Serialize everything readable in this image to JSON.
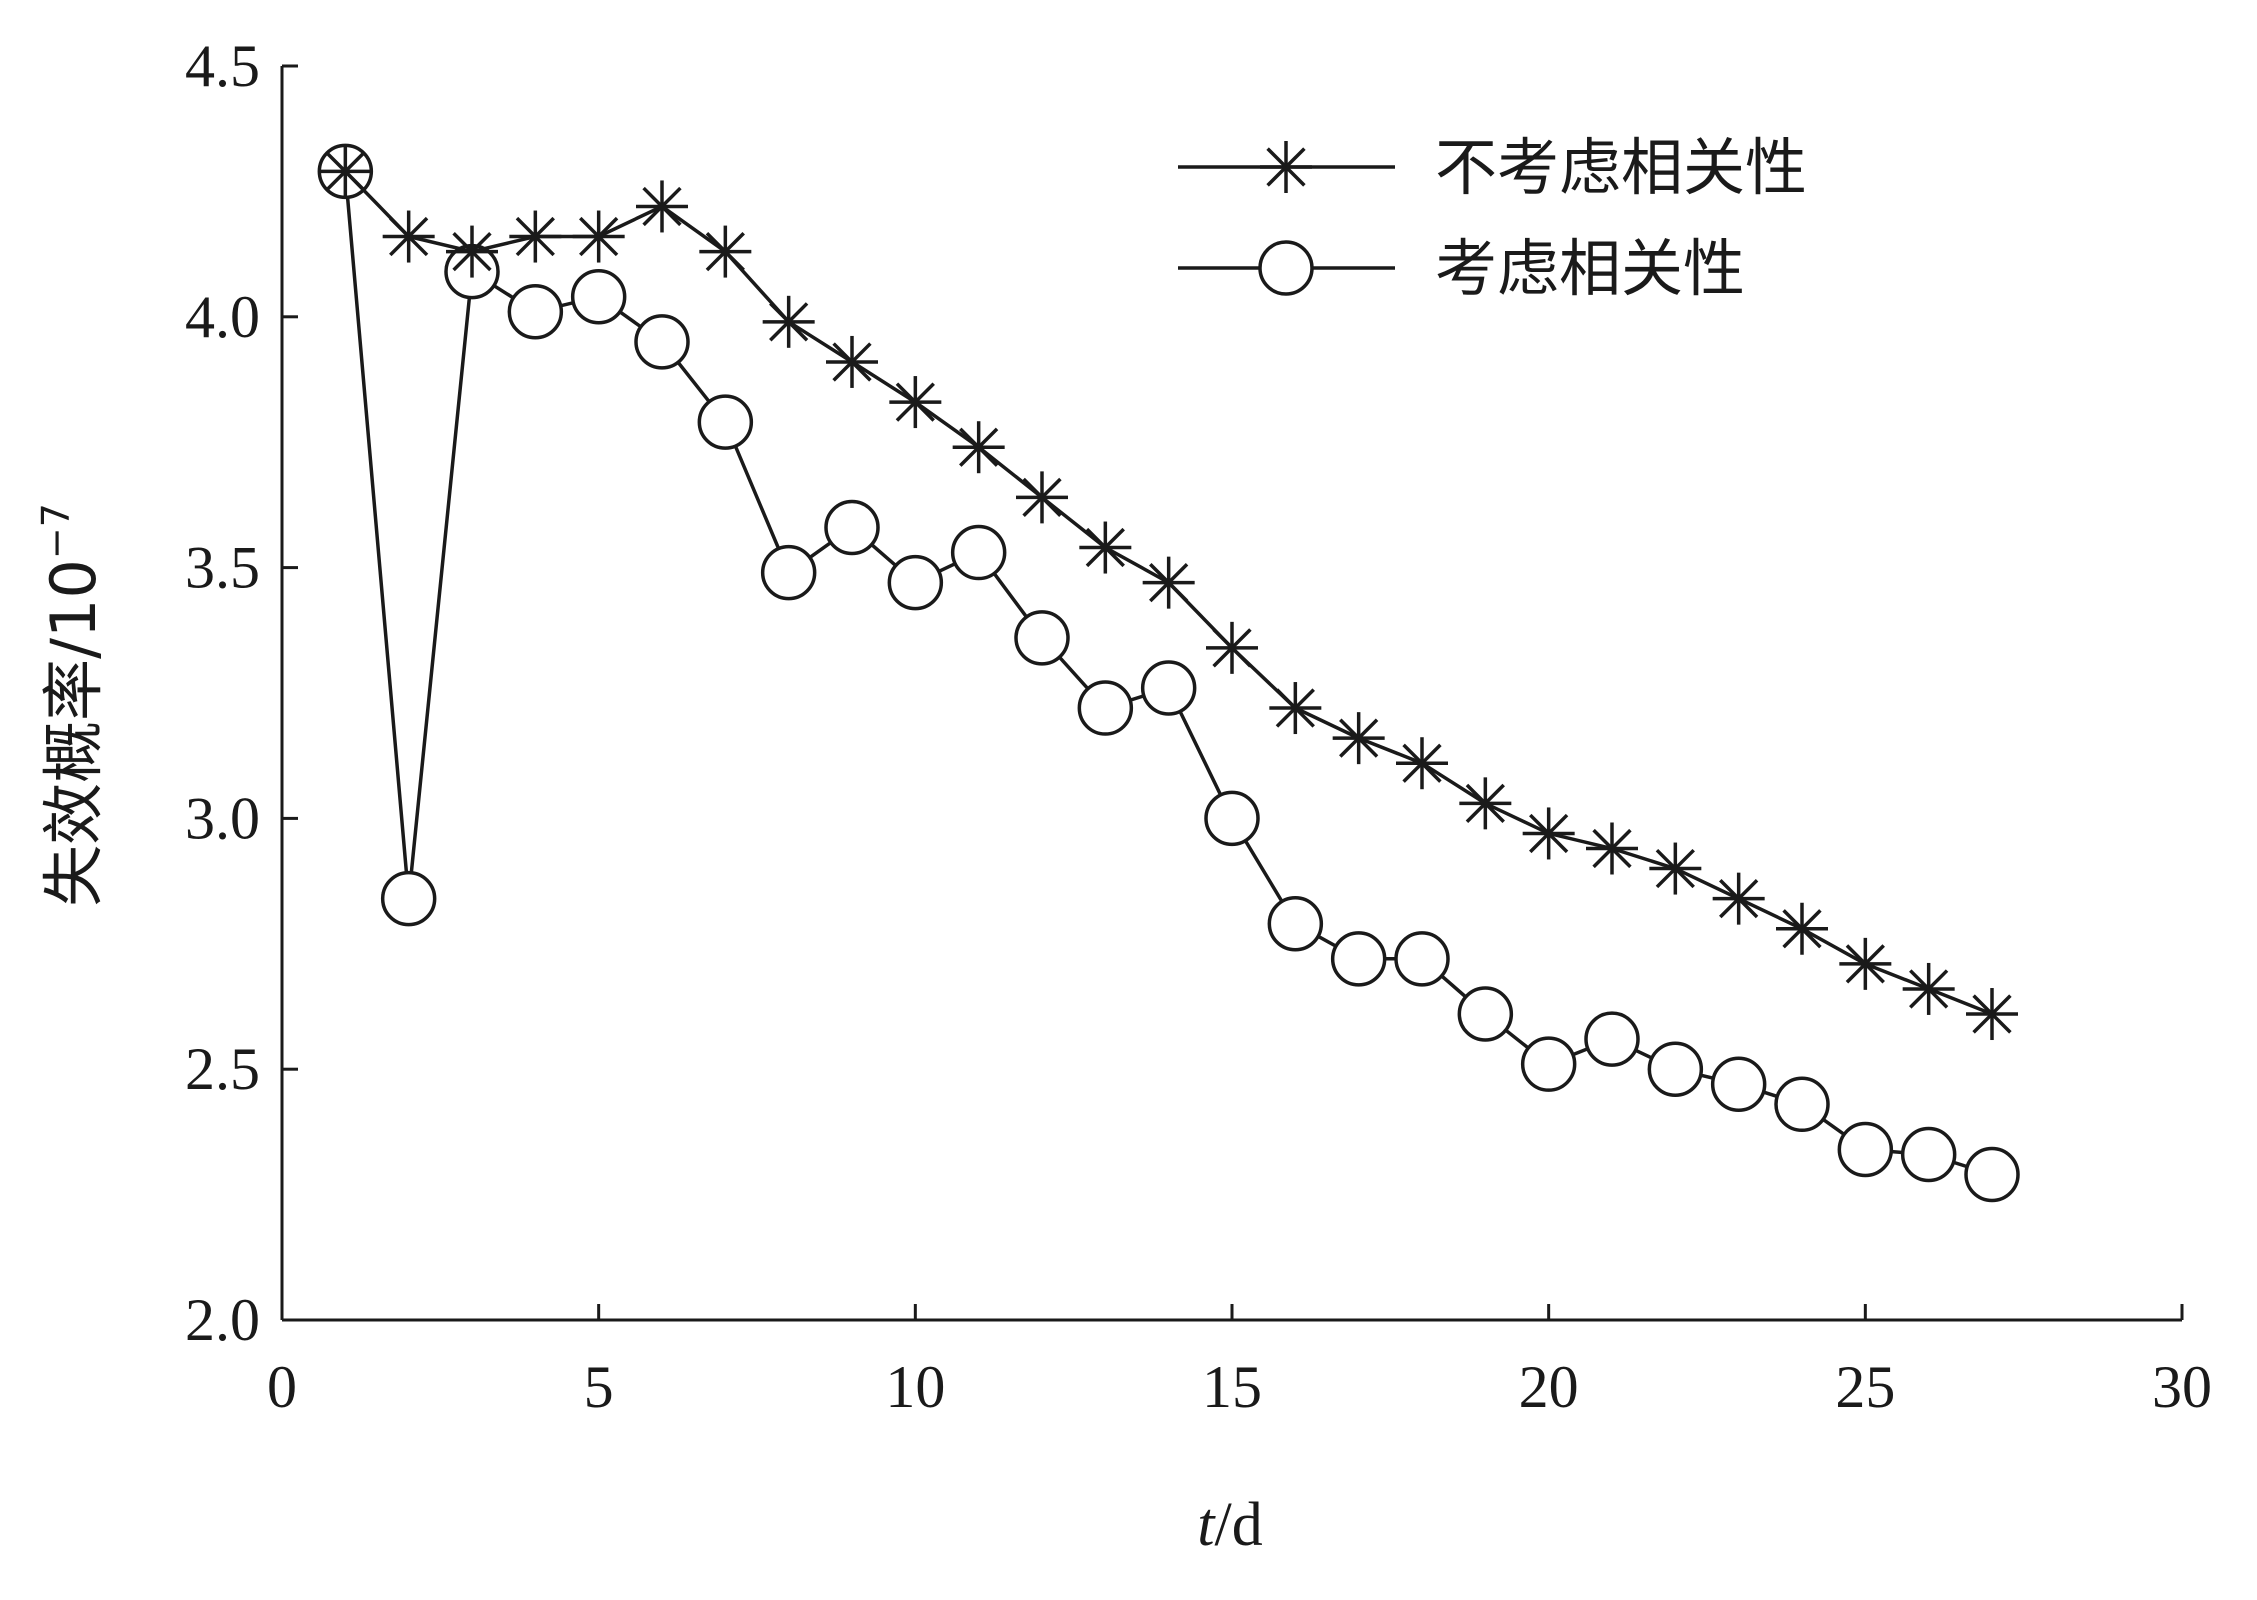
{
  "chart_data": {
    "type": "line",
    "xlabel": {
      "var": "t",
      "unit": "/d"
    },
    "ylabel": {
      "text": "失效概率/10",
      "exponent": "−7"
    },
    "xlim": [
      0,
      30
    ],
    "ylim": [
      2.0,
      4.5
    ],
    "xticks": [
      0,
      5,
      10,
      15,
      20,
      25,
      30
    ],
    "yticks": [
      "2.0",
      "2.5",
      "3.0",
      "3.5",
      "4.0",
      "4.5"
    ],
    "grid": false,
    "legend_position": "top-right",
    "x": [
      1,
      2,
      3,
      4,
      5,
      6,
      7,
      8,
      9,
      10,
      11,
      12,
      13,
      14,
      15,
      16,
      17,
      18,
      19,
      20,
      21,
      22,
      23,
      24,
      25,
      26,
      27
    ],
    "series": [
      {
        "name": "不考虑相关性",
        "marker": "asterisk",
        "values": [
          4.29,
          4.16,
          4.13,
          4.16,
          4.16,
          4.22,
          4.13,
          3.99,
          3.91,
          3.83,
          3.74,
          3.64,
          3.54,
          3.47,
          3.34,
          3.22,
          3.16,
          3.11,
          3.03,
          2.97,
          2.94,
          2.9,
          2.84,
          2.78,
          2.71,
          2.66,
          2.61
        ]
      },
      {
        "name": "考虑相关性",
        "marker": "circle",
        "values": [
          4.29,
          2.84,
          4.09,
          4.01,
          4.04,
          3.95,
          3.79,
          3.49,
          3.58,
          3.47,
          3.53,
          3.36,
          3.22,
          3.26,
          3.0,
          2.79,
          2.72,
          2.72,
          2.61,
          2.51,
          2.56,
          2.5,
          2.47,
          2.43,
          2.34,
          2.33,
          2.29
        ]
      }
    ],
    "colors": {
      "line": "#1a1a1a",
      "background": "#ffffff"
    }
  }
}
